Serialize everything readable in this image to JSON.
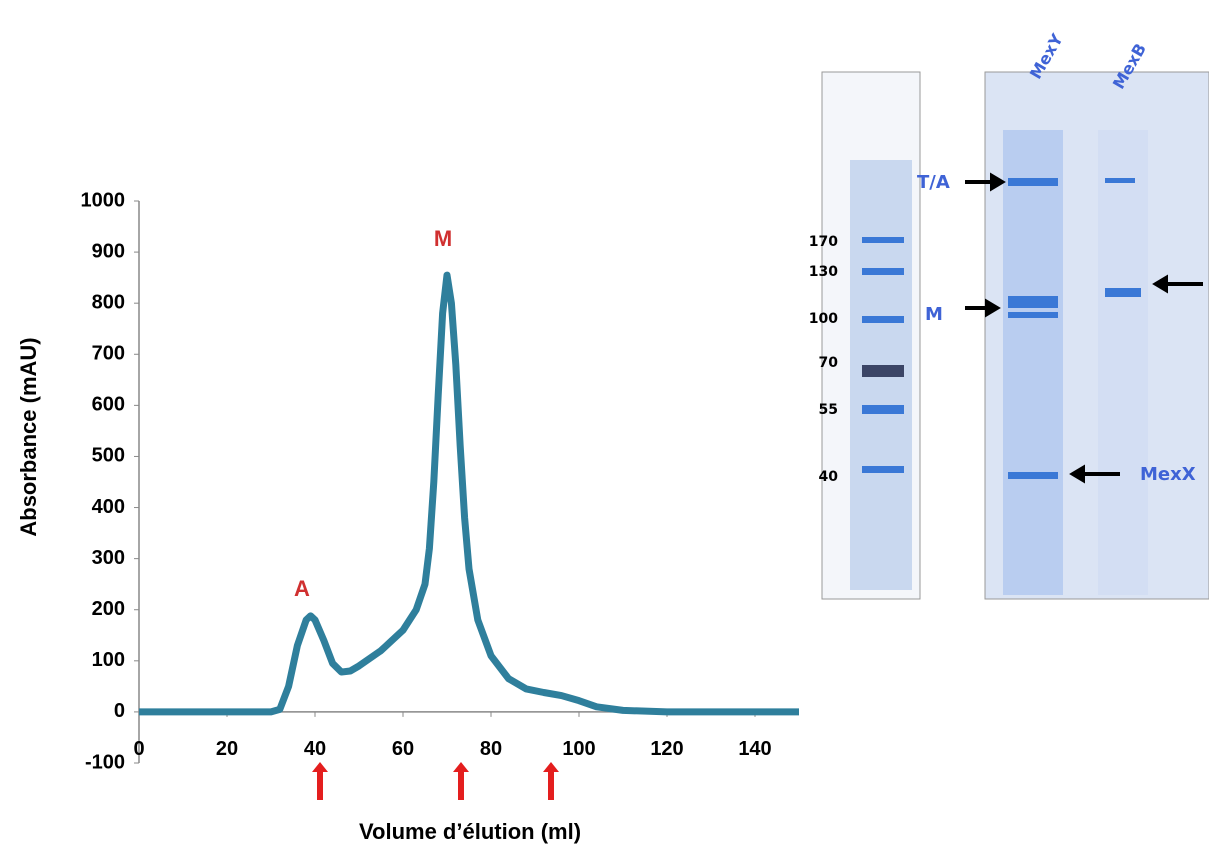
{
  "chart_data": {
    "type": "line",
    "x_label": "Volume d’élution (ml)",
    "y_label": "Absorbance (mAU)",
    "annotations": [
      "A",
      "M"
    ],
    "xlim": [
      0,
      150
    ],
    "xticks": [
      0,
      20,
      40,
      60,
      80,
      100,
      120,
      140
    ],
    "ylim": [
      -100,
      1000
    ],
    "yticks": [
      -100,
      0,
      100,
      200,
      300,
      400,
      500,
      600,
      700,
      800,
      900,
      1000
    ],
    "series": [
      {
        "color": "#2f7f9c",
        "x": [
          0,
          30,
          32,
          34,
          36,
          38,
          39,
          40,
          42,
          44,
          46,
          48,
          50,
          55,
          60,
          63,
          65,
          66,
          67,
          68,
          69,
          70,
          71,
          72,
          73,
          74,
          75,
          77,
          80,
          84,
          88,
          92,
          96,
          100,
          104,
          110,
          120,
          150
        ],
        "values": [
          0,
          0,
          5,
          50,
          130,
          180,
          188,
          180,
          140,
          95,
          78,
          80,
          90,
          120,
          160,
          200,
          250,
          320,
          450,
          620,
          780,
          855,
          800,
          680,
          520,
          380,
          280,
          180,
          110,
          65,
          45,
          38,
          32,
          22,
          10,
          3,
          0,
          0
        ]
      }
    ]
  },
  "gel": {
    "lanes": [
      "MexY",
      "MexB"
    ],
    "ladder": [
      "170",
      "130",
      "100",
      "70",
      "55",
      "40"
    ],
    "bands": [
      "T/A",
      "M",
      "MexX"
    ]
  }
}
